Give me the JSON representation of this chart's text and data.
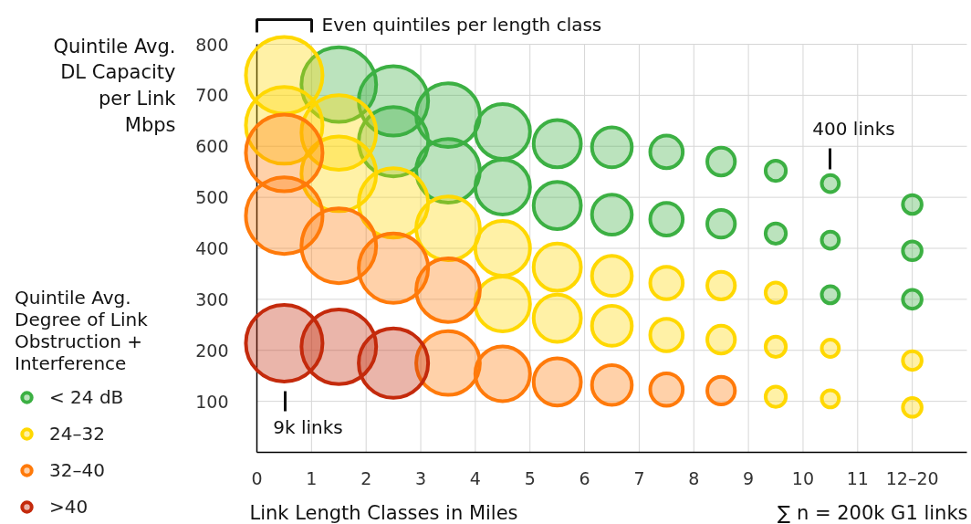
{
  "chart_data": {
    "type": "bubble",
    "title": null,
    "xlabel": "Link Length Classes in Miles",
    "ylabel": "Quintile Avg.\nDL Capacity\nper Link\nMbps",
    "legend_title": "Quintile Avg.\nDegree of Link\nObstruction +\nInterference",
    "xlim": [
      0,
      13
    ],
    "ylim": [
      0,
      800
    ],
    "xticks": [
      0,
      1,
      2,
      3,
      4,
      5,
      6,
      7,
      8,
      9,
      10,
      11,
      {
        "value": 12,
        "label": "12–20"
      }
    ],
    "yticks": [
      100,
      200,
      300,
      400,
      500,
      600,
      700,
      800
    ],
    "grid": true,
    "legend": "left",
    "annotations": [
      "Even quintiles per length class",
      "400 links",
      "9k links",
      "∑ n = 200k G1 links"
    ],
    "series": [
      {
        "name": "< 24 dB",
        "color": "#3cb043",
        "x": [
          1.5,
          2.5,
          2.5,
          3.5,
          3.5,
          4.5,
          4.5,
          5.5,
          5.5,
          6.5,
          6.5,
          7.5,
          7.5,
          8.5,
          8.5,
          9.5,
          9.5,
          10.5,
          10.5,
          10.5,
          12,
          12,
          12
        ],
        "values": [
          721,
          689,
          609,
          661,
          552,
          629,
          520,
          605,
          484,
          598,
          466,
          589,
          457,
          570,
          448,
          552,
          429,
          527,
          416,
          309,
          486,
          395,
          300
        ],
        "sizes": [
          0.95,
          0.82,
          0.82,
          0.69,
          0.69,
          0.51,
          0.51,
          0.38,
          0.38,
          0.27,
          0.27,
          0.18,
          0.18,
          0.13,
          0.13,
          0.07,
          0.07,
          0.05,
          0.05,
          0.05,
          0.06,
          0.06,
          0.06
        ]
      },
      {
        "name": "24–32",
        "color": "#ffd800",
        "x": [
          0.5,
          0.5,
          1.5,
          1.5,
          2.5,
          3.5,
          4.5,
          4.5,
          5.5,
          5.5,
          6.5,
          6.5,
          7.5,
          7.5,
          8.5,
          8.5,
          9.5,
          9.5,
          9.5,
          10.5,
          10.5,
          12,
          12
        ],
        "values": [
          739,
          641,
          627,
          546,
          489,
          439,
          400,
          291,
          363,
          263,
          346,
          248,
          332,
          230,
          327,
          221,
          313,
          207,
          109,
          204,
          105,
          180,
          88
        ],
        "sizes": [
          1,
          1,
          0.95,
          0.95,
          0.82,
          0.69,
          0.51,
          0.51,
          0.38,
          0.38,
          0.27,
          0.27,
          0.18,
          0.18,
          0.13,
          0.13,
          0.07,
          0.07,
          0.07,
          0.05,
          0.05,
          0.06,
          0.06
        ]
      },
      {
        "name": "32–40",
        "color": "#ff7a0a",
        "x": [
          0.5,
          0.5,
          1.5,
          2.5,
          3.5,
          3.5,
          4.5,
          5.5,
          6.5,
          7.5,
          8.5
        ],
        "values": [
          587,
          464,
          405,
          361,
          318,
          175,
          154,
          138,
          132,
          123,
          121
        ],
        "sizes": [
          1,
          1,
          0.95,
          0.82,
          0.69,
          0.69,
          0.51,
          0.38,
          0.27,
          0.18,
          0.13
        ]
      },
      {
        "name": ">40",
        "color": "#c42a0c",
        "x": [
          0.5,
          1.5,
          2.5
        ],
        "values": [
          214,
          207,
          175
        ],
        "sizes": [
          1,
          0.95,
          0.82
        ]
      }
    ]
  }
}
